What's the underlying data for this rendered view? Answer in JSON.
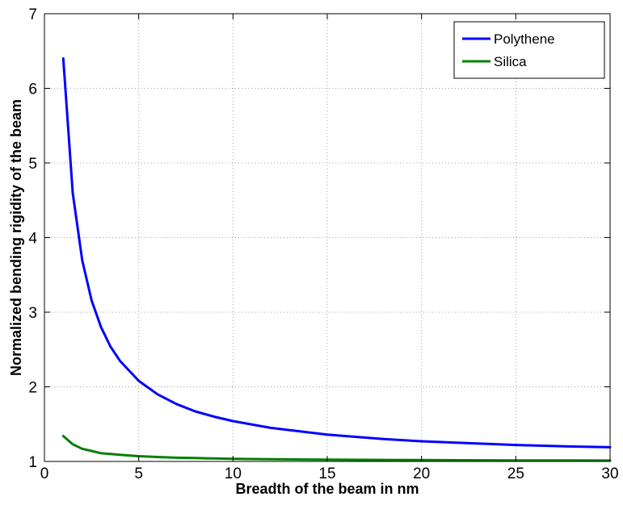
{
  "chart_data": {
    "type": "line",
    "title": "",
    "xlabel": "Breadth of the beam in nm",
    "ylabel": "Normalized bending rigidity of the beam",
    "xlim": [
      0,
      30
    ],
    "ylim": [
      1,
      7
    ],
    "xticks": [
      0,
      5,
      10,
      15,
      20,
      25,
      30
    ],
    "yticks": [
      1,
      2,
      3,
      4,
      5,
      6,
      7
    ],
    "grid": true,
    "legend_position": "top-right",
    "x": [
      1,
      1.5,
      2,
      2.5,
      3,
      3.5,
      4,
      5,
      6,
      7,
      8,
      9,
      10,
      12,
      15,
      18,
      20,
      22,
      25,
      28,
      30
    ],
    "series": [
      {
        "name": "Polythene",
        "color": "#0000ff",
        "values": [
          6.4,
          4.6,
          3.7,
          3.16,
          2.8,
          2.54,
          2.35,
          2.08,
          1.9,
          1.77,
          1.67,
          1.6,
          1.54,
          1.45,
          1.36,
          1.3,
          1.27,
          1.25,
          1.22,
          1.2,
          1.19
        ]
      },
      {
        "name": "Silica",
        "color": "#008000",
        "values": [
          1.34,
          1.23,
          1.17,
          1.14,
          1.11,
          1.1,
          1.09,
          1.07,
          1.06,
          1.05,
          1.045,
          1.04,
          1.036,
          1.03,
          1.024,
          1.02,
          1.018,
          1.016,
          1.014,
          1.013,
          1.012
        ]
      }
    ]
  }
}
